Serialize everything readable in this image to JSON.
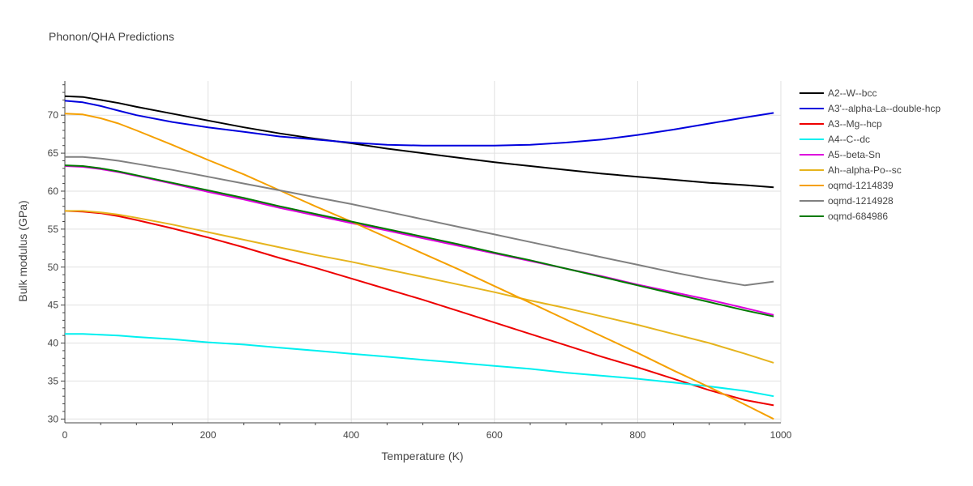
{
  "chart_data": {
    "type": "line",
    "title": "Phonon/QHA Predictions",
    "xlabel": "Temperature (K)",
    "ylabel": "Bulk modulus (GPa)",
    "xlim": [
      0,
      1000
    ],
    "ylim": [
      29.5,
      74.5
    ],
    "xticks": [
      0,
      200,
      400,
      600,
      800,
      1000
    ],
    "yticks": [
      30,
      35,
      40,
      45,
      50,
      55,
      60,
      65,
      70
    ],
    "grid": true,
    "legend_position": "right",
    "x": [
      0,
      25,
      50,
      75,
      100,
      150,
      200,
      250,
      300,
      350,
      400,
      450,
      500,
      550,
      600,
      650,
      700,
      750,
      800,
      850,
      900,
      950,
      990
    ],
    "series": [
      {
        "name": "A2--W--bcc",
        "color": "#000000",
        "values": [
          72.5,
          72.4,
          72.0,
          71.6,
          71.1,
          70.2,
          69.3,
          68.4,
          67.6,
          66.9,
          66.3,
          65.6,
          65.0,
          64.4,
          63.8,
          63.3,
          62.8,
          62.3,
          61.9,
          61.5,
          61.1,
          60.8,
          60.5
        ]
      },
      {
        "name": "A3'--alpha-La--double-hcp",
        "color": "#0000dd",
        "values": [
          71.9,
          71.7,
          71.2,
          70.6,
          70.0,
          69.1,
          68.4,
          67.8,
          67.2,
          66.8,
          66.4,
          66.1,
          66.0,
          66.0,
          66.0,
          66.1,
          66.4,
          66.8,
          67.4,
          68.1,
          68.9,
          69.7,
          70.3
        ]
      },
      {
        "name": "A3--Mg--hcp",
        "color": "#ee0000",
        "values": [
          57.4,
          57.3,
          57.1,
          56.7,
          56.2,
          55.1,
          53.9,
          52.6,
          51.2,
          49.9,
          48.5,
          47.1,
          45.7,
          44.2,
          42.7,
          41.2,
          39.7,
          38.2,
          36.8,
          35.3,
          33.8,
          32.5,
          31.8
        ]
      },
      {
        "name": "A4--C--dc",
        "color": "#00f0f0",
        "values": [
          41.2,
          41.2,
          41.1,
          41.0,
          40.8,
          40.5,
          40.1,
          39.8,
          39.4,
          39.0,
          38.6,
          38.2,
          37.8,
          37.4,
          37.0,
          36.6,
          36.1,
          35.7,
          35.3,
          34.8,
          34.3,
          33.7,
          33.0
        ]
      },
      {
        "name": "A5--beta-Sn",
        "color": "#dd00dd",
        "values": [
          63.3,
          63.2,
          62.9,
          62.5,
          62.0,
          61.0,
          59.9,
          58.9,
          57.8,
          56.8,
          55.8,
          54.8,
          53.8,
          52.8,
          51.8,
          50.8,
          49.8,
          48.8,
          47.7,
          46.7,
          45.7,
          44.6,
          43.7
        ]
      },
      {
        "name": "Ah--alpha-Po--sc",
        "color": "#e6b41e",
        "values": [
          57.4,
          57.4,
          57.2,
          56.9,
          56.5,
          55.6,
          54.6,
          53.6,
          52.6,
          51.6,
          50.7,
          49.7,
          48.7,
          47.7,
          46.7,
          45.6,
          44.6,
          43.5,
          42.4,
          41.2,
          40.0,
          38.6,
          37.4
        ]
      },
      {
        "name": "oqmd-1214839",
        "color": "#f5a000",
        "values": [
          70.2,
          70.1,
          69.6,
          68.9,
          68.0,
          66.1,
          64.1,
          62.2,
          60.1,
          58.0,
          56.0,
          53.9,
          51.8,
          49.7,
          47.5,
          45.3,
          43.1,
          40.9,
          38.7,
          36.4,
          34.2,
          31.9,
          30.0
        ]
      },
      {
        "name": "oqmd-1214928",
        "color": "#808080",
        "values": [
          64.5,
          64.5,
          64.3,
          64.0,
          63.6,
          62.8,
          61.9,
          61.0,
          60.1,
          59.2,
          58.3,
          57.3,
          56.3,
          55.3,
          54.3,
          53.3,
          52.3,
          51.3,
          50.3,
          49.3,
          48.4,
          47.6,
          48.1
        ]
      },
      {
        "name": "oqmd-684986",
        "color": "#007a00",
        "values": [
          63.4,
          63.3,
          63.0,
          62.6,
          62.1,
          61.1,
          60.1,
          59.1,
          58.0,
          57.0,
          56.0,
          55.0,
          54.0,
          53.0,
          51.9,
          50.9,
          49.8,
          48.7,
          47.6,
          46.5,
          45.4,
          44.3,
          43.5
        ]
      }
    ]
  }
}
